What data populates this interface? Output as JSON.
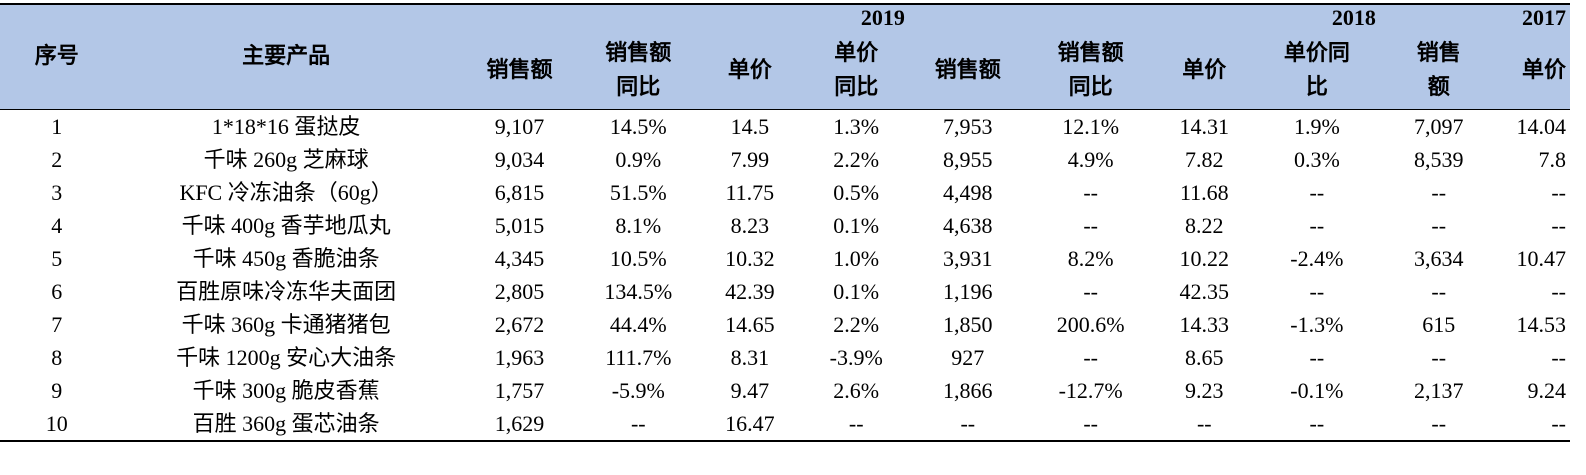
{
  "table": {
    "years": [
      "2019",
      "2018",
      "2017"
    ],
    "headers": [
      "序号",
      "主要产品",
      "销售额",
      "销售额同比",
      "单价",
      "单价同比",
      "销售额",
      "销售额同比",
      "单价",
      "单价同比",
      "销售额",
      "单价"
    ],
    "header_lines": [
      [
        "序号"
      ],
      [
        "主要产品"
      ],
      [
        "销售额"
      ],
      [
        "销售额",
        "同比"
      ],
      [
        "单价"
      ],
      [
        "单价",
        "同比"
      ],
      [
        "销售额"
      ],
      [
        "销售额",
        "同比"
      ],
      [
        "单价"
      ],
      [
        "单价同",
        "比"
      ],
      [
        "销售",
        "额"
      ],
      [
        "单价"
      ]
    ],
    "rows": [
      [
        "1",
        "1*18*16 蛋挞皮",
        "9,107",
        "14.5%",
        "14.5",
        "1.3%",
        "7,953",
        "12.1%",
        "14.31",
        "1.9%",
        "7,097",
        "14.04"
      ],
      [
        "2",
        "千味 260g 芝麻球",
        "9,034",
        "0.9%",
        "7.99",
        "2.2%",
        "8,955",
        "4.9%",
        "7.82",
        "0.3%",
        "8,539",
        "7.8"
      ],
      [
        "3",
        "KFC 冷冻油条（60g）",
        "6,815",
        "51.5%",
        "11.75",
        "0.5%",
        "4,498",
        "--",
        "11.68",
        "--",
        "--",
        "--"
      ],
      [
        "4",
        "千味 400g 香芋地瓜丸",
        "5,015",
        "8.1%",
        "8.23",
        "0.1%",
        "4,638",
        "--",
        "8.22",
        "--",
        "--",
        "--"
      ],
      [
        "5",
        "千味 450g 香脆油条",
        "4,345",
        "10.5%",
        "10.32",
        "1.0%",
        "3,931",
        "8.2%",
        "10.22",
        "-2.4%",
        "3,634",
        "10.47"
      ],
      [
        "6",
        "百胜原味冷冻华夫面团",
        "2,805",
        "134.5%",
        "42.39",
        "0.1%",
        "1,196",
        "--",
        "42.35",
        "--",
        "--",
        "--"
      ],
      [
        "7",
        "千味 360g 卡通猪猪包",
        "2,672",
        "44.4%",
        "14.65",
        "2.2%",
        "1,850",
        "200.6%",
        "14.33",
        "-1.3%",
        "615",
        "14.53"
      ],
      [
        "8",
        "千味 1200g 安心大油条",
        "1,963",
        "111.7%",
        "8.31",
        "-3.9%",
        "927",
        "--",
        "8.65",
        "--",
        "--",
        "--"
      ],
      [
        "9",
        "千味 300g 脆皮香蕉",
        "1,757",
        "-5.9%",
        "9.47",
        "2.6%",
        "1,866",
        "-12.7%",
        "9.23",
        "-0.1%",
        "2,137",
        "9.24"
      ],
      [
        "10",
        "百胜 360g 蛋芯油条",
        "1,629",
        "--",
        "16.47",
        "--",
        "--",
        "--",
        "--",
        "--",
        "--",
        "--"
      ]
    ]
  }
}
